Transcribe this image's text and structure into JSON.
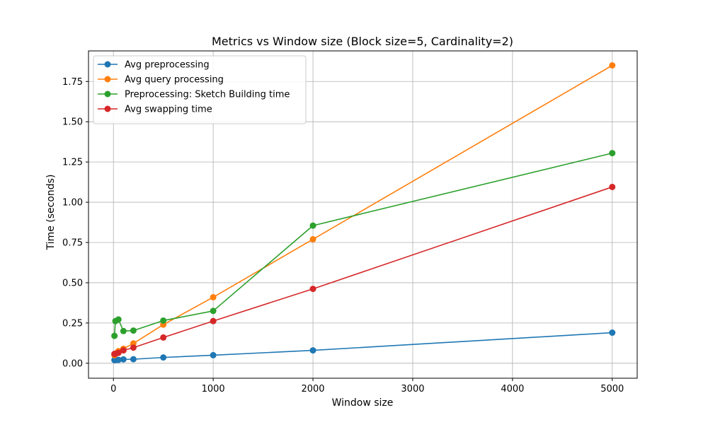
{
  "chart_data": {
    "type": "line",
    "title": "Metrics vs Window size (Block size=5, Cardinality=2)",
    "xlabel": "Window size",
    "ylabel": "Time (seconds)",
    "xlim": [
      -250,
      5250
    ],
    "ylim": [
      -0.093,
      1.94
    ],
    "xticks": [
      0,
      1000,
      2000,
      3000,
      4000,
      5000
    ],
    "xtick_labels": [
      "0",
      "1000",
      "2000",
      "3000",
      "4000",
      "5000"
    ],
    "yticks": [
      0.0,
      0.25,
      0.5,
      0.75,
      1.0,
      1.25,
      1.5,
      1.75
    ],
    "ytick_labels": [
      "0.00",
      "0.25",
      "0.50",
      "0.75",
      "1.00",
      "1.25",
      "1.50",
      "1.75"
    ],
    "grid": true,
    "legend_position": "top-left",
    "x": [
      10,
      20,
      50,
      100,
      200,
      500,
      1000,
      2000,
      5000
    ],
    "series": [
      {
        "name": "Avg preprocessing",
        "color": "#1f77b4",
        "values": [
          0.02,
          0.02,
          0.021,
          0.024,
          0.025,
          0.036,
          0.05,
          0.08,
          0.19
        ]
      },
      {
        "name": "Avg query processing",
        "color": "#ff7f0e",
        "values": [
          0.05,
          0.06,
          0.075,
          0.09,
          0.123,
          0.24,
          0.41,
          0.77,
          1.85
        ]
      },
      {
        "name": "Preprocessing: Sketch Building time",
        "color": "#2ca02c",
        "values": [
          0.17,
          0.262,
          0.272,
          0.2,
          0.203,
          0.265,
          0.325,
          0.855,
          1.305
        ]
      },
      {
        "name": "Avg swapping time",
        "color": "#d62728",
        "values": [
          0.058,
          0.059,
          0.065,
          0.08,
          0.097,
          0.16,
          0.262,
          0.462,
          1.095
        ]
      }
    ]
  }
}
